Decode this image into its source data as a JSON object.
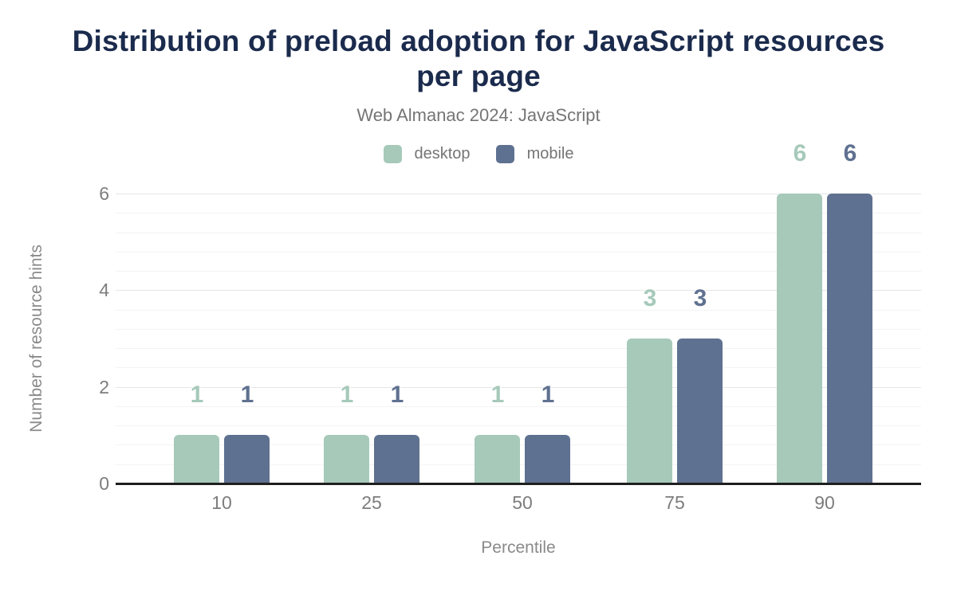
{
  "header": {
    "title": "Distribution of preload adoption for JavaScript resources per page",
    "subtitle": "Web Almanac 2024: JavaScript"
  },
  "colors": {
    "title": "#1b2b4d",
    "subtitle": "#757575",
    "axis_text": "#7d7d7d",
    "desktop": "#a6c9ba",
    "mobile": "#5f7190",
    "baseline": "#1f1f1f",
    "gridline_minor": "#f3f3f3",
    "gridline_major": "#e6e6e6"
  },
  "chart_data": {
    "type": "bar",
    "title": "Distribution of preload adoption for JavaScript resources per page",
    "subtitle": "Web Almanac 2024: JavaScript",
    "categories": [
      "10",
      "25",
      "50",
      "75",
      "90"
    ],
    "series": [
      {
        "name": "desktop",
        "color": "#a6c9ba",
        "values": [
          1,
          1,
          1,
          3,
          6
        ]
      },
      {
        "name": "mobile",
        "color": "#5f7190",
        "values": [
          1,
          1,
          1,
          3,
          6
        ]
      }
    ],
    "xlabel": "Percentile",
    "ylabel": "Number of resource hints",
    "ylim": [
      0,
      6
    ],
    "yticks": [
      0,
      2,
      4,
      6
    ],
    "minor_grid_step": 0.4,
    "grid": "horizontal",
    "legend_position": "top",
    "value_labels": true
  }
}
